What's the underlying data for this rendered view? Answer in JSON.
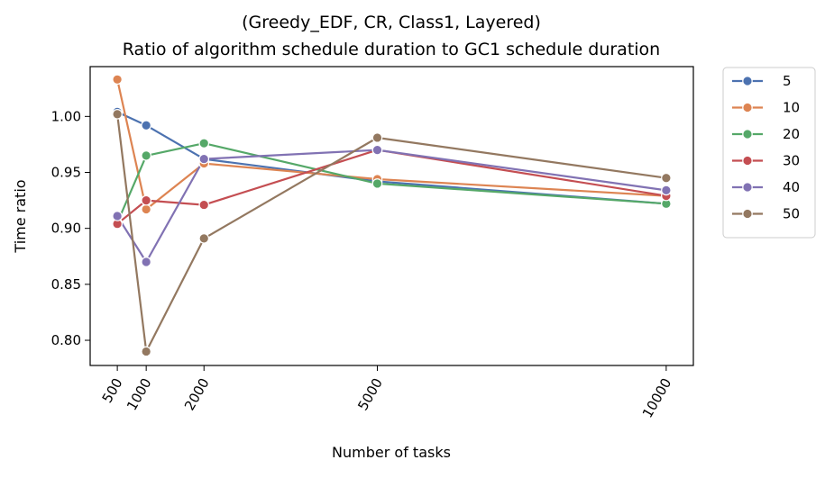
{
  "chart_data": {
    "type": "line",
    "title_line1": "(Greedy_EDF, CR, Class1, Layered)",
    "title_line2": "Ratio of algorithm schedule duration to GC1 schedule duration",
    "xlabel": "Number of tasks",
    "ylabel": "Time ratio",
    "x": [
      500,
      1000,
      2000,
      5000,
      10000
    ],
    "x_tick_labels": [
      "500",
      "1000",
      "2000",
      "5000",
      "10000"
    ],
    "xlim": [
      30,
      10470
    ],
    "ylim": [
      0.7775,
      1.0445
    ],
    "y_ticks": [
      0.8,
      0.85,
      0.9,
      0.95,
      1.0
    ],
    "y_tick_labels": [
      "0.80",
      "0.85",
      "0.90",
      "0.95",
      "1.00"
    ],
    "grid": false,
    "legend_placement": "outside-top-right",
    "series": [
      {
        "name": "5",
        "color": "#4c72b0",
        "values": [
          1.004,
          0.992,
          0.962,
          0.942,
          0.922
        ]
      },
      {
        "name": "10",
        "color": "#dd8452",
        "values": [
          1.033,
          0.917,
          0.958,
          0.944,
          0.929
        ]
      },
      {
        "name": "20",
        "color": "#55a868",
        "values": [
          0.905,
          0.965,
          0.976,
          0.94,
          0.922
        ]
      },
      {
        "name": "30",
        "color": "#c44e52",
        "values": [
          0.904,
          0.925,
          0.921,
          0.97,
          0.929
        ]
      },
      {
        "name": "40",
        "color": "#8172b3",
        "values": [
          0.911,
          0.87,
          0.962,
          0.97,
          0.934
        ]
      },
      {
        "name": "50",
        "color": "#937860",
        "values": [
          1.002,
          0.79,
          0.891,
          0.981,
          0.945
        ]
      }
    ]
  }
}
